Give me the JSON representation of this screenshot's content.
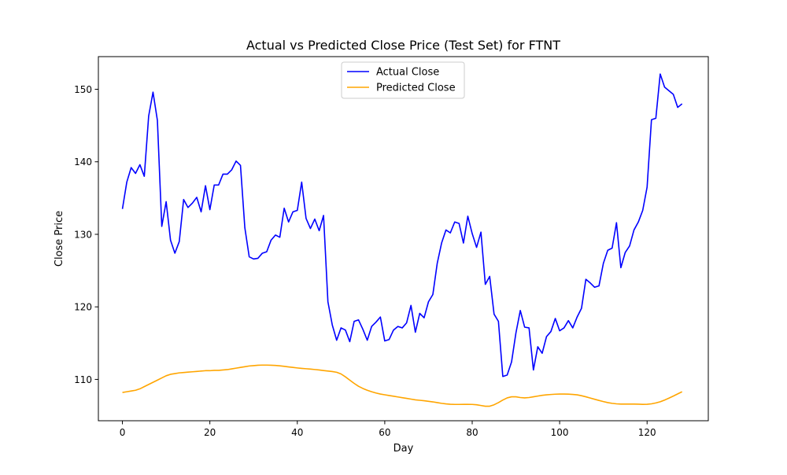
{
  "chart_data": {
    "type": "line",
    "title": "Actual vs Predicted Close Price (Test Set) for FTNT",
    "xlabel": "Day",
    "ylabel": "Close Price",
    "xlim": [
      -5.5,
      134
    ],
    "ylim": [
      104.3,
      154.5
    ],
    "xticks": [
      0,
      20,
      40,
      60,
      80,
      100,
      120
    ],
    "yticks": [
      110,
      120,
      130,
      140,
      150
    ],
    "grid": false,
    "legend_position": "upper center",
    "series": [
      {
        "name": "Actual Close",
        "color": "#0000ff",
        "x": [
          0,
          1,
          2,
          3,
          4,
          5,
          6,
          7,
          8,
          9,
          10,
          11,
          12,
          13,
          14,
          15,
          16,
          17,
          18,
          19,
          20,
          21,
          22,
          23,
          24,
          25,
          26,
          27,
          28,
          29,
          30,
          31,
          32,
          33,
          34,
          35,
          36,
          37,
          38,
          39,
          40,
          41,
          42,
          43,
          44,
          45,
          46,
          47,
          48,
          49,
          50,
          51,
          52,
          53,
          54,
          55,
          56,
          57,
          58,
          59,
          60,
          61,
          62,
          63,
          64,
          65,
          66,
          67,
          68,
          69,
          70,
          71,
          72,
          73,
          74,
          75,
          76,
          77,
          78,
          79,
          80,
          81,
          82,
          83,
          84,
          85,
          86,
          87,
          88,
          89,
          90,
          91,
          92,
          93,
          94,
          95,
          96,
          97,
          98,
          99,
          100,
          101,
          102,
          103,
          104,
          105,
          106,
          107,
          108,
          109,
          110,
          111,
          112,
          113,
          114,
          115,
          116,
          117,
          118,
          119,
          120,
          121,
          122,
          123,
          124,
          125,
          126,
          127,
          128
        ],
        "values": [
          133.5,
          137.2,
          139.2,
          138.4,
          139.6,
          138.0,
          146.3,
          149.6,
          145.7,
          131.1,
          134.5,
          129.2,
          127.4,
          129.0,
          134.8,
          133.7,
          134.3,
          135.1,
          133.1,
          136.7,
          133.4,
          136.8,
          136.8,
          138.3,
          138.3,
          138.9,
          140.1,
          139.5,
          130.9,
          126.9,
          126.6,
          126.7,
          127.4,
          127.6,
          129.2,
          129.9,
          129.6,
          133.6,
          131.7,
          133.1,
          133.3,
          137.2,
          132.2,
          130.8,
          132.1,
          130.5,
          132.6,
          120.7,
          117.5,
          115.4,
          117.1,
          116.8,
          115.2,
          118.0,
          118.2,
          116.9,
          115.4,
          117.3,
          117.9,
          118.6,
          115.3,
          115.5,
          116.8,
          117.3,
          117.1,
          117.8,
          120.2,
          116.5,
          119.1,
          118.5,
          120.7,
          121.7,
          126.0,
          128.8,
          130.6,
          130.2,
          131.7,
          131.5,
          128.8,
          132.5,
          130.1,
          128.2,
          130.3,
          123.1,
          124.2,
          119.0,
          118.0,
          110.4,
          110.6,
          112.4,
          116.4,
          119.5,
          117.2,
          117.1,
          111.3,
          114.5,
          113.6,
          115.9,
          116.6,
          118.4,
          116.7,
          117.1,
          118.1,
          117.1,
          118.6,
          119.8,
          123.8,
          123.3,
          122.7,
          122.9,
          126.0,
          127.8,
          128.1,
          131.6,
          125.4,
          127.5,
          128.4,
          130.6,
          131.7,
          133.3,
          136.5,
          145.8,
          146.0,
          152.1,
          150.3,
          149.8,
          149.3,
          147.5,
          148.0
        ]
      },
      {
        "name": "Predicted Close",
        "color": "#ffa500",
        "x": [
          0,
          1,
          2,
          3,
          4,
          5,
          6,
          7,
          8,
          9,
          10,
          11,
          12,
          13,
          14,
          15,
          16,
          17,
          18,
          19,
          20,
          21,
          22,
          23,
          24,
          25,
          26,
          27,
          28,
          29,
          30,
          31,
          32,
          33,
          34,
          35,
          36,
          37,
          38,
          39,
          40,
          41,
          42,
          43,
          44,
          45,
          46,
          47,
          48,
          49,
          50,
          51,
          52,
          53,
          54,
          55,
          56,
          57,
          58,
          59,
          60,
          61,
          62,
          63,
          64,
          65,
          66,
          67,
          68,
          69,
          70,
          71,
          72,
          73,
          74,
          75,
          76,
          77,
          78,
          79,
          80,
          81,
          82,
          83,
          84,
          85,
          86,
          87,
          88,
          89,
          90,
          91,
          92,
          93,
          94,
          95,
          96,
          97,
          98,
          99,
          100,
          101,
          102,
          103,
          104,
          105,
          106,
          107,
          108,
          109,
          110,
          111,
          112,
          113,
          114,
          115,
          116,
          117,
          118,
          119,
          120,
          121,
          122,
          123,
          124,
          125,
          126,
          127,
          128
        ],
        "values": [
          108.2,
          108.3,
          108.4,
          108.5,
          108.7,
          109.0,
          109.3,
          109.6,
          109.9,
          110.2,
          110.5,
          110.7,
          110.8,
          110.9,
          110.95,
          111.0,
          111.05,
          111.1,
          111.15,
          111.2,
          111.2,
          111.25,
          111.25,
          111.3,
          111.35,
          111.45,
          111.55,
          111.65,
          111.75,
          111.85,
          111.9,
          111.95,
          111.97,
          111.97,
          111.95,
          111.92,
          111.87,
          111.8,
          111.72,
          111.65,
          111.58,
          111.52,
          111.47,
          111.42,
          111.36,
          111.3,
          111.22,
          111.15,
          111.08,
          110.98,
          110.75,
          110.35,
          109.9,
          109.45,
          109.05,
          108.75,
          108.5,
          108.3,
          108.12,
          107.98,
          107.88,
          107.78,
          107.68,
          107.58,
          107.48,
          107.38,
          107.28,
          107.18,
          107.12,
          107.06,
          106.98,
          106.9,
          106.8,
          106.7,
          106.62,
          106.57,
          106.55,
          106.55,
          106.56,
          106.56,
          106.55,
          106.5,
          106.4,
          106.3,
          106.3,
          106.5,
          106.8,
          107.15,
          107.45,
          107.6,
          107.6,
          107.5,
          107.45,
          107.5,
          107.6,
          107.7,
          107.8,
          107.87,
          107.92,
          107.96,
          107.98,
          107.98,
          107.97,
          107.93,
          107.87,
          107.75,
          107.6,
          107.43,
          107.26,
          107.1,
          106.94,
          106.8,
          106.7,
          106.63,
          106.6,
          106.6,
          106.6,
          106.6,
          106.58,
          106.56,
          106.57,
          106.63,
          106.75,
          106.92,
          107.15,
          107.42,
          107.7,
          108.0,
          108.3
        ]
      }
    ]
  }
}
